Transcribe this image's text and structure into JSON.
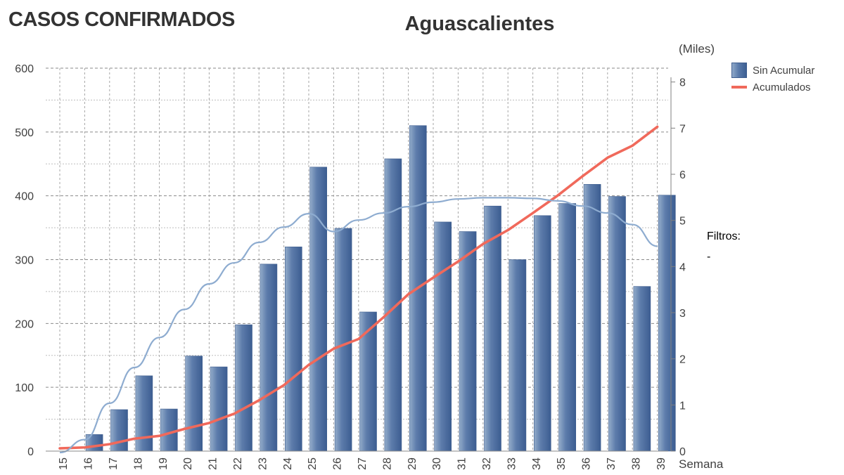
{
  "heading": "CASOS CONFIRMADOS",
  "filters": {
    "label": "Filtros:",
    "value": "-"
  },
  "chart_data": {
    "type": "bar",
    "title": "Aguascalientes",
    "xlabel": "Semana",
    "right_axis_unit": "(Miles)",
    "categories": [
      "15",
      "16",
      "17",
      "18",
      "19",
      "20",
      "21",
      "22",
      "23",
      "24",
      "25",
      "26",
      "27",
      "28",
      "29",
      "30",
      "31",
      "32",
      "33",
      "34",
      "35",
      "36",
      "37",
      "38",
      "39"
    ],
    "left_axis": {
      "ylim": [
        0,
        600
      ],
      "ticks": [
        "0",
        "100",
        "200",
        "300",
        "400",
        "500",
        "600"
      ]
    },
    "right_axis": {
      "ylim": [
        0,
        8.3
      ],
      "ticks": [
        "0",
        "1",
        "2",
        "3",
        "4",
        "5",
        "6",
        "7",
        "8"
      ]
    },
    "grid": true,
    "legend_position": "top-right",
    "series": [
      {
        "name": "Sin Acumular",
        "kind": "bar",
        "axis": "left",
        "color": "#5b7bab",
        "values": [
          0,
          26,
          65,
          118,
          66,
          149,
          132,
          198,
          293,
          320,
          445,
          349,
          218,
          458,
          510,
          359,
          344,
          384,
          300,
          369,
          388,
          418,
          399,
          258,
          401
        ]
      },
      {
        "name": "Acumulados",
        "kind": "line",
        "axis": "right",
        "color": "#f0695b",
        "values": [
          0.06,
          0.08,
          0.15,
          0.27,
          0.33,
          0.48,
          0.61,
          0.81,
          1.1,
          1.43,
          1.87,
          2.22,
          2.43,
          2.9,
          3.4,
          3.76,
          4.11,
          4.49,
          4.79,
          5.16,
          5.54,
          5.96,
          6.36,
          6.62,
          7.03
        ]
      },
      {
        "kind": "trend",
        "axis": "left",
        "color": "#8eacd0",
        "values": [
          -12,
          18,
          75,
          131,
          178,
          222,
          262,
          295,
          327,
          351,
          372,
          344,
          362,
          373,
          383,
          390,
          395,
          397,
          397,
          396,
          392,
          384,
          373,
          355,
          321
        ]
      }
    ]
  }
}
